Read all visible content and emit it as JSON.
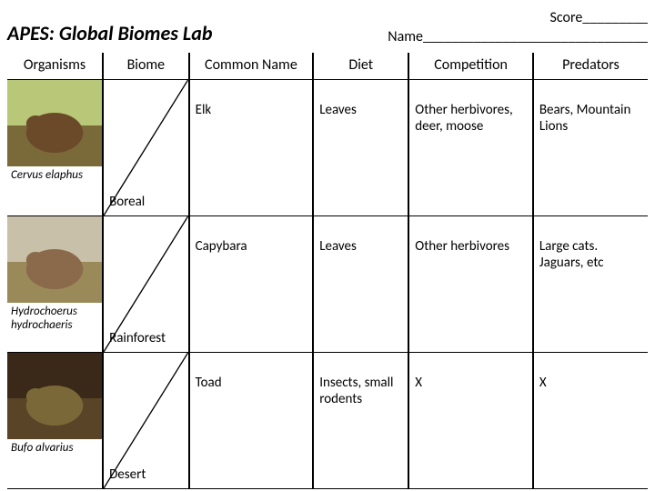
{
  "header": {
    "title": "APES: Global Biomes Lab",
    "score_label": "Score_________",
    "name_label": "Name_______________________________"
  },
  "columns": [
    "Organisms",
    "Biome",
    "Common Name",
    "Diet",
    "Competition",
    "Predators"
  ],
  "rows": [
    {
      "sci_name": "Cervus elaphus",
      "biome": "Boreal",
      "common": "Elk",
      "diet": "Leaves",
      "competition": "Other herbivores, deer, moose",
      "predators": "Bears, Mountain Lions",
      "img_colors": {
        "sky": "#b8c878",
        "ground": "#7a6a3a",
        "animal": "#6b4a2a"
      }
    },
    {
      "sci_name": "Hydrochoerus hydrochaeris",
      "biome": "Rainforest",
      "common": "Capybara",
      "diet": "Leaves",
      "competition": "Other herbivores",
      "predators": "Large cats. Jaguars, etc",
      "img_colors": {
        "sky": "#c8c0a8",
        "ground": "#9a8a5a",
        "animal": "#8a6a4a"
      }
    },
    {
      "sci_name": "Bufo alvarius",
      "biome": "Desert",
      "common": "Toad",
      "diet": "Insects, small rodents",
      "competition": "X",
      "predators": "X",
      "img_colors": {
        "sky": "#3a2818",
        "ground": "#5a4428",
        "animal": "#7a6838"
      }
    }
  ]
}
